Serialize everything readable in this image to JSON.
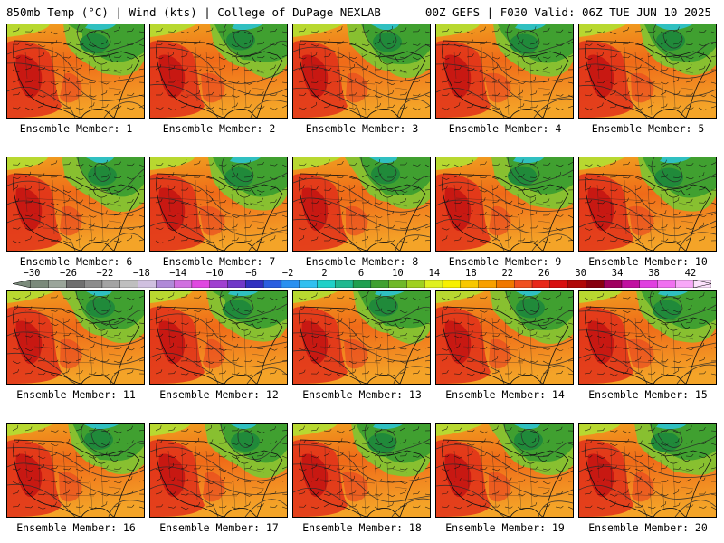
{
  "header": {
    "left_title": "850mb Temp (°C) | Wind (kts) | College of DuPage NEXLAB",
    "right_title": "00Z GEFS | F030 Valid: 06Z TUE JUN 10 2025"
  },
  "members": [
    {
      "label": "Ensemble Member: 1"
    },
    {
      "label": "Ensemble Member: 2"
    },
    {
      "label": "Ensemble Member: 3"
    },
    {
      "label": "Ensemble Member: 4"
    },
    {
      "label": "Ensemble Member: 5"
    },
    {
      "label": "Ensemble Member: 6"
    },
    {
      "label": "Ensemble Member: 7"
    },
    {
      "label": "Ensemble Member: 8"
    },
    {
      "label": "Ensemble Member: 9"
    },
    {
      "label": "Ensemble Member: 10"
    },
    {
      "label": "Ensemble Member: 11"
    },
    {
      "label": "Ensemble Member: 12"
    },
    {
      "label": "Ensemble Member: 13"
    },
    {
      "label": "Ensemble Member: 14"
    },
    {
      "label": "Ensemble Member: 15"
    },
    {
      "label": "Ensemble Member: 16"
    },
    {
      "label": "Ensemble Member: 17"
    },
    {
      "label": "Ensemble Member: 18"
    },
    {
      "label": "Ensemble Member: 19"
    },
    {
      "label": "Ensemble Member: 20"
    }
  ],
  "colorbar": {
    "labels": [
      "−30",
      "−26",
      "−22",
      "−18",
      "−14",
      "−10",
      "−6",
      "−2",
      "2",
      "6",
      "10",
      "14",
      "18",
      "22",
      "26",
      "30",
      "34",
      "38",
      "42"
    ],
    "colors": [
      "#7a8a7a",
      "#9aa59a",
      "#6f6f6f",
      "#8c8c8c",
      "#a3a3a3",
      "#bfbfbf",
      "#d0c0e0",
      "#b08ad8",
      "#d070e0",
      "#e048e0",
      "#a040d0",
      "#7038c8",
      "#3030c0",
      "#2a5ee0",
      "#2a90f0",
      "#30c0f0",
      "#20d0c8",
      "#20b890",
      "#20a050",
      "#40a030",
      "#70b828",
      "#a0d020",
      "#e0f020",
      "#f8f000",
      "#f8c800",
      "#f8a000",
      "#f07800",
      "#f05020",
      "#e82818",
      "#d81010",
      "#b00808",
      "#880010",
      "#a00060",
      "#c010a0",
      "#e040e0",
      "#f070f0",
      "#f8a8f8",
      "#fce0fc"
    ]
  }
}
